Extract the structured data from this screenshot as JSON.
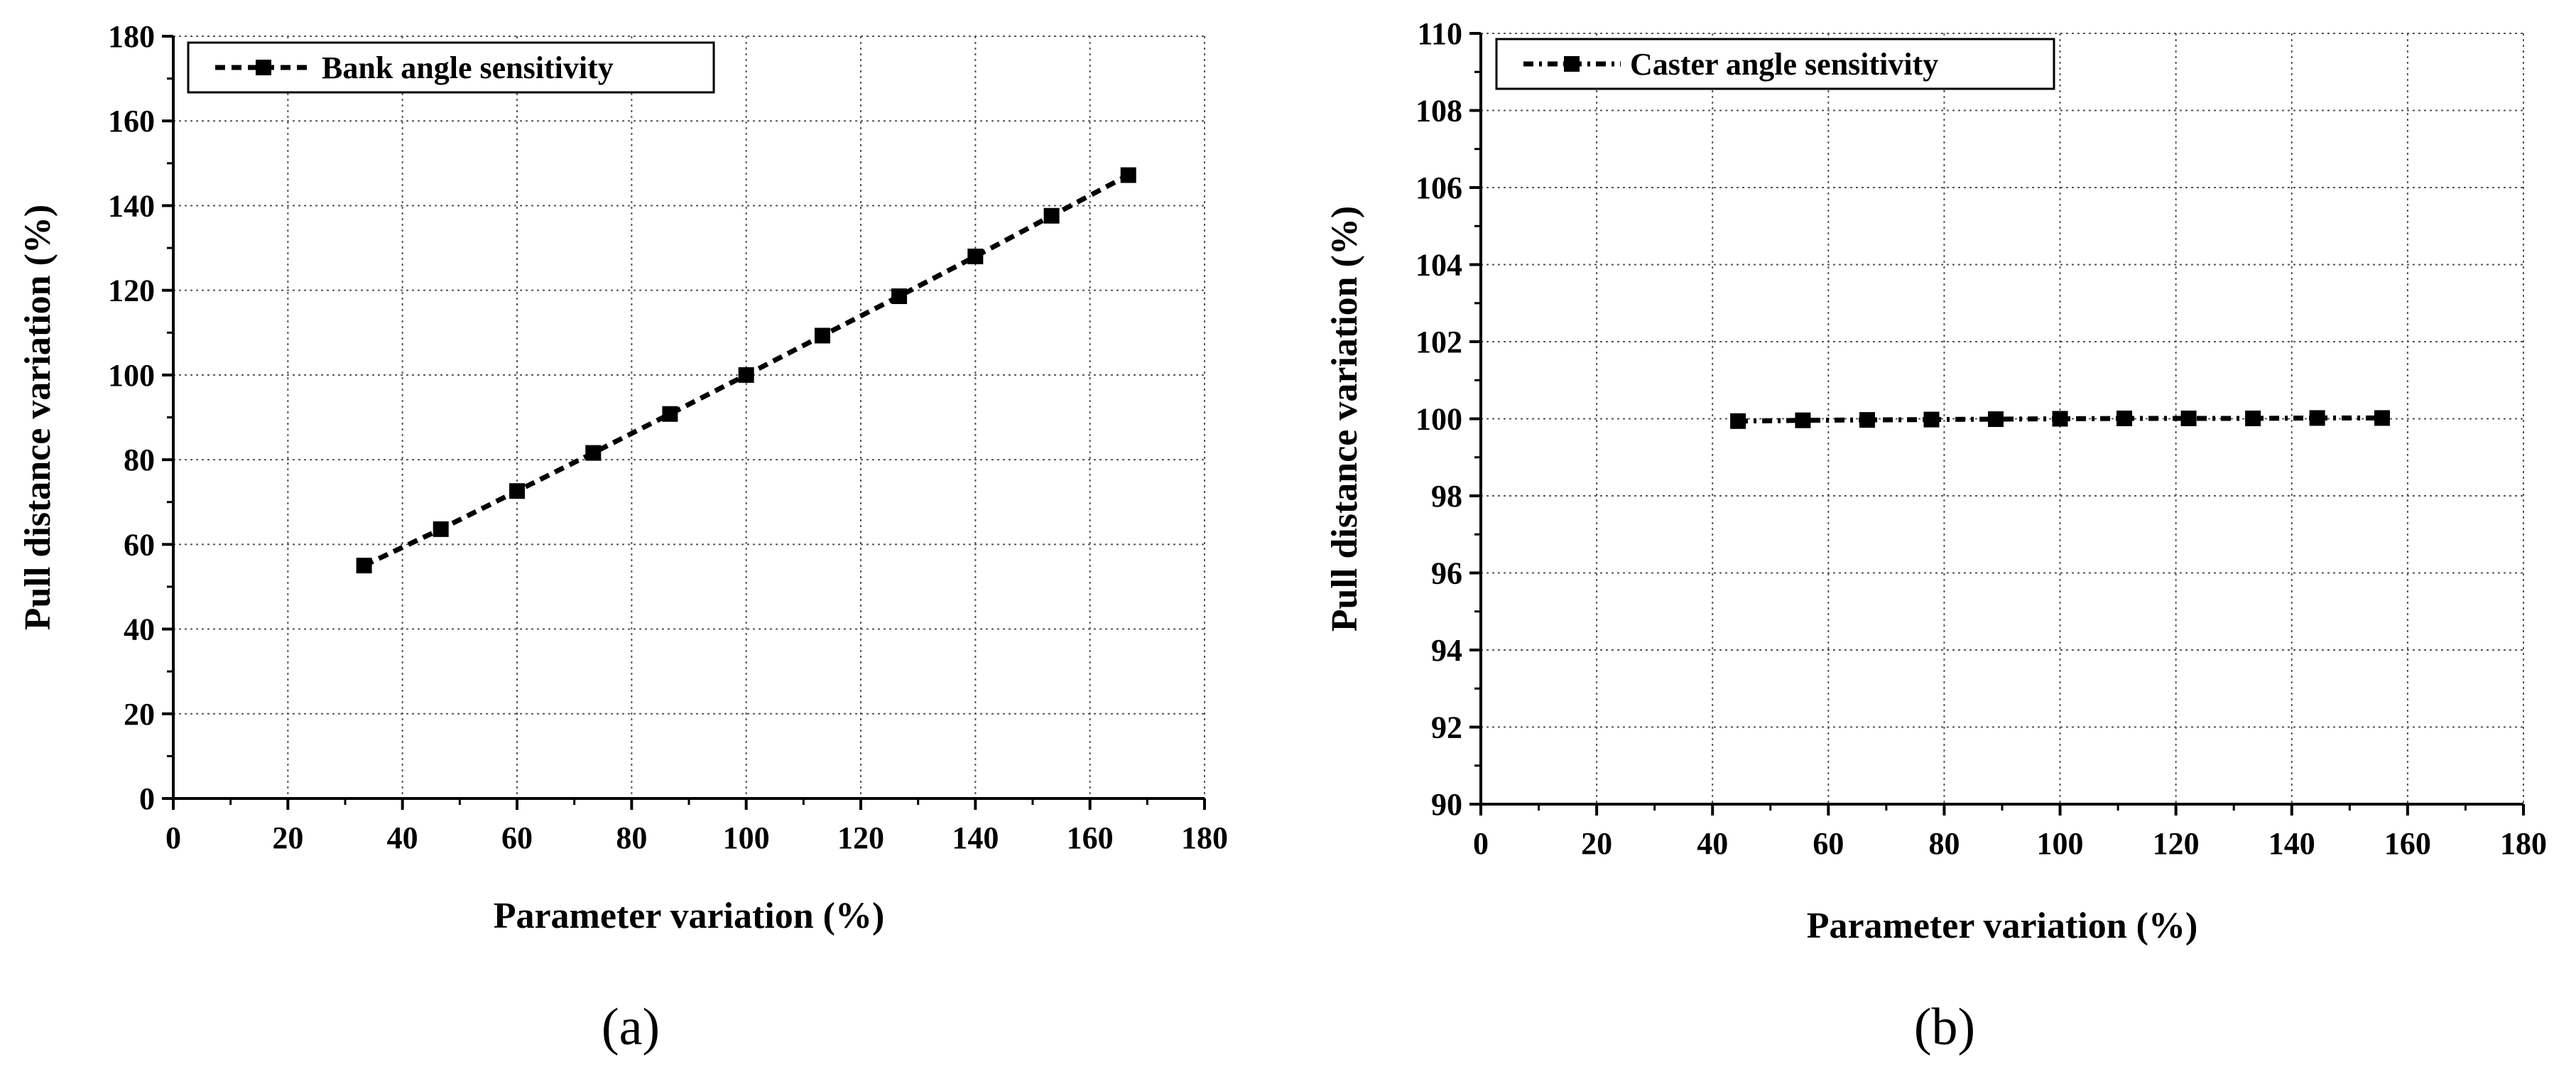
{
  "chart_data": [
    {
      "type": "line",
      "panel_label": "(a)",
      "xlabel": "Parameter variation (%)",
      "ylabel": "Pull distance variation (%)",
      "xlim": [
        0,
        180
      ],
      "ylim": [
        0,
        180
      ],
      "xticks": [
        0,
        20,
        40,
        60,
        80,
        100,
        120,
        140,
        160,
        180
      ],
      "yticks": [
        0,
        20,
        40,
        60,
        80,
        100,
        120,
        140,
        160,
        180
      ],
      "grid": true,
      "legend_position": "top-left",
      "line_style": "short-dash",
      "marker": "square",
      "series": [
        {
          "name": "Bank angle sensitivity",
          "x": [
            33.3,
            46.7,
            60.0,
            73.3,
            86.7,
            100.0,
            113.3,
            126.7,
            140.0,
            153.3,
            166.7
          ],
          "y": [
            55.0,
            63.6,
            72.6,
            81.6,
            90.8,
            100.0,
            109.3,
            118.6,
            128.0,
            137.6,
            147.2
          ]
        }
      ]
    },
    {
      "type": "line",
      "panel_label": "(b)",
      "xlabel": "Parameter variation (%)",
      "ylabel": "Pull distance variation (%)",
      "xlim": [
        0,
        180
      ],
      "ylim": [
        90,
        110
      ],
      "xticks": [
        0,
        20,
        40,
        60,
        80,
        100,
        120,
        140,
        160,
        180
      ],
      "yticks": [
        90,
        92,
        94,
        96,
        98,
        100,
        102,
        104,
        106,
        108,
        110
      ],
      "grid": true,
      "legend_position": "top-left",
      "line_style": "dash-dot",
      "marker": "square",
      "series": [
        {
          "name": "Caster angle sensitivity",
          "x": [
            44.4,
            55.6,
            66.7,
            77.8,
            88.9,
            100.0,
            111.1,
            122.2,
            133.3,
            144.4,
            155.6
          ],
          "y": [
            99.94,
            99.96,
            99.97,
            99.98,
            99.99,
            100.0,
            100.01,
            100.01,
            100.01,
            100.02,
            100.02
          ]
        }
      ]
    }
  ]
}
